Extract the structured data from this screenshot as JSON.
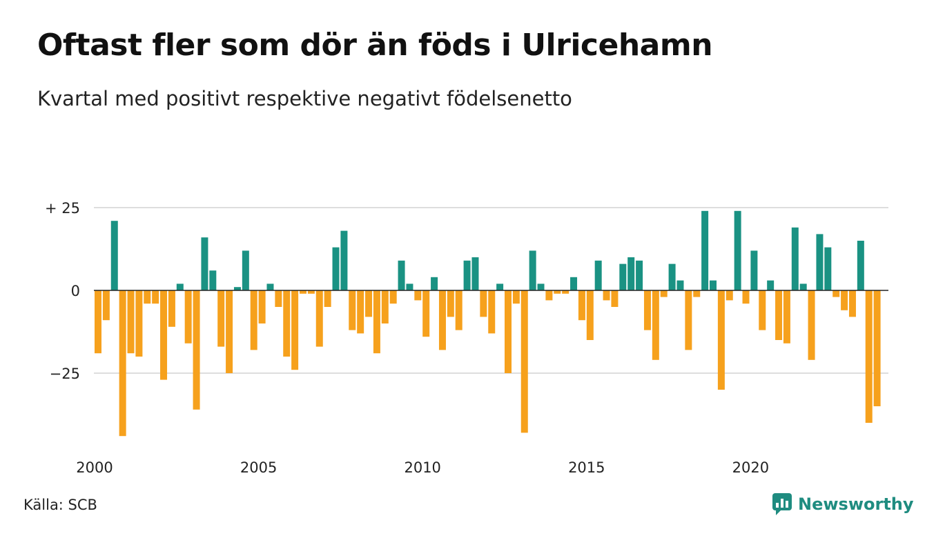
{
  "title": "Oftast fler som dör än föds i Ulricehamn",
  "subtitle": "Kvartal med positivt respektive negativt födelsenetto",
  "source": "Källa: SCB",
  "brand": {
    "name": "Newsworthy",
    "icon": "newsworthy-logo-icon"
  },
  "colors": {
    "positive": "#1a9283",
    "negative": "#f6a11d",
    "grid": "#dddddd",
    "brand": "#1f8c80"
  },
  "chart_data": {
    "type": "bar",
    "title": "Oftast fler som dör än föds i Ulricehamn",
    "subtitle": "Kvartal med positivt respektive negativt födelsenetto",
    "xlabel": "",
    "ylabel": "",
    "ylim": [
      -45,
      27
    ],
    "yticks": [
      {
        "value": 25,
        "label": "+ 25"
      },
      {
        "value": 0,
        "label": "0"
      },
      {
        "value": -25,
        "label": "−25"
      }
    ],
    "xticks": [
      "2000",
      "2005",
      "2010",
      "2015",
      "2020"
    ],
    "x_start_year": 2000,
    "grid": true,
    "legend": "none",
    "values": [
      -19,
      -9,
      21,
      -44,
      -19,
      -20,
      -4,
      -4,
      -27,
      -11,
      2,
      -16,
      -36,
      16,
      6,
      -17,
      -25,
      1,
      12,
      -18,
      -10,
      2,
      -5,
      -20,
      -24,
      -1,
      -1,
      -17,
      -5,
      13,
      18,
      -12,
      -13,
      -8,
      -19,
      -10,
      -4,
      9,
      2,
      -3,
      -14,
      4,
      -18,
      -8,
      -12,
      9,
      10,
      -8,
      -13,
      2,
      -25,
      -4,
      -43,
      12,
      2,
      -3,
      -1,
      -1,
      4,
      -9,
      -15,
      9,
      -3,
      -5,
      8,
      10,
      9,
      -12,
      -21,
      -2,
      8,
      3,
      -18,
      -2,
      24,
      3,
      -30,
      -3,
      24,
      -4,
      12,
      -12,
      3,
      -15,
      -16,
      19,
      2,
      -21,
      17,
      13,
      -2,
      -6,
      -8,
      15,
      -40,
      -35
    ]
  }
}
